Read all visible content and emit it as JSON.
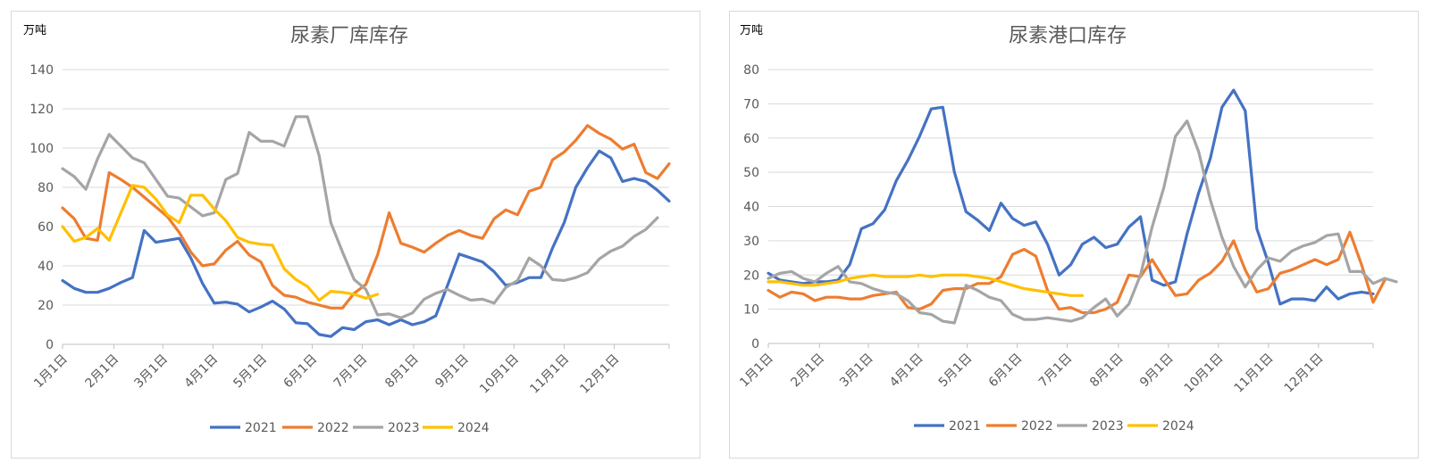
{
  "chart_data": [
    {
      "type": "line",
      "title": "尿素厂库库存",
      "unit_label": "万吨",
      "ylim": [
        0,
        140
      ],
      "yticks": [
        0,
        20,
        40,
        60,
        80,
        100,
        120,
        140
      ],
      "xlim": [
        1,
        53
      ],
      "xtick_positions": [
        1,
        5.4,
        9.6,
        13.9,
        18.1,
        22.4,
        26.7,
        31.1,
        35.4,
        39.7,
        44,
        48.3
      ],
      "xtick_labels": [
        "1月1日",
        "2月1日",
        "3月1日",
        "4月1日",
        "5月1日",
        "6月1日",
        "7月1日",
        "8月1日",
        "9月1日",
        "10月1日",
        "11月1日",
        "12月1日"
      ],
      "grid": true,
      "legend_position": "bottom",
      "series": [
        {
          "name": "2021",
          "color": "#4472c4",
          "values": [
            32.5,
            28.5,
            26.5,
            26.5,
            28.5,
            31.5,
            34,
            58,
            52,
            53,
            54,
            44,
            31,
            21,
            21.5,
            20.5,
            16.5,
            19,
            22,
            18,
            11,
            10.5,
            5,
            4,
            8.5,
            7.5,
            11.5,
            12.5,
            10,
            12.5,
            10,
            11.5,
            14.5,
            30,
            46,
            44,
            42,
            37,
            30,
            31.5,
            34,
            34,
            49,
            62,
            80,
            90,
            98.5,
            95,
            83,
            84.5,
            83,
            78.5,
            73
          ]
        },
        {
          "name": "2022",
          "color": "#ed7d31",
          "values": [
            69.5,
            64,
            54,
            53,
            87.5,
            84,
            80,
            75,
            70,
            65,
            57,
            47,
            40,
            41,
            48,
            52.5,
            45.5,
            42,
            30,
            25,
            24,
            21.5,
            20,
            18.5,
            18.5,
            26,
            30.5,
            45.5,
            67,
            51.5,
            49.5,
            47,
            51.5,
            55.5,
            58,
            55.5,
            54,
            64,
            68.5,
            66,
            78,
            80,
            94,
            98,
            104,
            111.5,
            107.5,
            104.5,
            99.5,
            102,
            87.5,
            84.5,
            92
          ]
        },
        {
          "name": "2023",
          "color": "#a5a5a5",
          "values": [
            89.5,
            85.5,
            79,
            94.5,
            107,
            101,
            95,
            92.5,
            84,
            75.5,
            74.5,
            70,
            65.5,
            67,
            84,
            87,
            108,
            103.5,
            103.5,
            101,
            116,
            116,
            96,
            62,
            47,
            33,
            28,
            15,
            15.5,
            13.5,
            16,
            23,
            26,
            28,
            25,
            22.5,
            23,
            21,
            29,
            32.5,
            44,
            40,
            33,
            32.5,
            34,
            36.5,
            43.5,
            47.5,
            50,
            55,
            58.5,
            64.5
          ]
        },
        {
          "name": "2024",
          "color": "#ffc000",
          "values": [
            60,
            52.5,
            54.5,
            59,
            53,
            67,
            81,
            80,
            74,
            66,
            62,
            76,
            76,
            69,
            63,
            54.5,
            52,
            51,
            50.5,
            38.5,
            33,
            29.5,
            22.5,
            27,
            26.5,
            25.5,
            23.5,
            25.5
          ]
        }
      ]
    },
    {
      "type": "line",
      "title": "尿素港口库存",
      "unit_label": "万吨",
      "ylim": [
        0,
        80
      ],
      "yticks": [
        0,
        10,
        20,
        30,
        40,
        50,
        60,
        70,
        80
      ],
      "xlim": [
        1,
        53
      ],
      "xtick_positions": [
        1,
        5.4,
        9.6,
        13.9,
        18.1,
        22.4,
        26.7,
        31.1,
        35.4,
        39.7,
        44,
        48.3
      ],
      "xtick_labels": [
        "1月1日",
        "2月1日",
        "3月1日",
        "4月1日",
        "5月1日",
        "6月1日",
        "7月1日",
        "8月1日",
        "9月1日",
        "10月1日",
        "11月1日",
        "12月1日"
      ],
      "grid": true,
      "legend_position": "bottom",
      "series": [
        {
          "name": "2021",
          "color": "#4472c4",
          "values": [
            20.5,
            18.5,
            18,
            17.5,
            18,
            18,
            18.5,
            23,
            33.5,
            35,
            39,
            47.5,
            53.5,
            60.5,
            68.5,
            69,
            50,
            38.5,
            36,
            33,
            41,
            36.5,
            34.5,
            35.5,
            29,
            20,
            23,
            29,
            31,
            28,
            29,
            34,
            37,
            18.5,
            17,
            18,
            32,
            44,
            54,
            69,
            74,
            68,
            33.5,
            23.5,
            11.5,
            13,
            13,
            12.5,
            16.5,
            13,
            14.5,
            15,
            14.5
          ]
        },
        {
          "name": "2022",
          "color": "#ed7d31",
          "values": [
            15.5,
            13.5,
            15,
            14.5,
            12.5,
            13.5,
            13.5,
            13,
            13,
            14,
            14.5,
            15,
            10.5,
            10,
            11.5,
            15.5,
            16,
            16,
            17.5,
            17.5,
            19.5,
            26,
            27.5,
            25.5,
            15.5,
            10,
            10.5,
            9,
            9,
            10,
            12,
            20,
            19.5,
            24.5,
            19,
            14,
            14.5,
            18.5,
            20.5,
            24,
            30,
            21.5,
            15,
            16,
            20.5,
            21.5,
            23,
            24.5,
            23,
            24.5,
            32.5,
            23,
            12,
            18.5
          ]
        },
        {
          "name": "2023",
          "color": "#a5a5a5",
          "values": [
            19,
            20.5,
            21,
            19,
            18,
            20.5,
            22.5,
            18,
            17.5,
            16,
            15,
            14.5,
            12.5,
            9,
            8.5,
            6.5,
            6,
            17,
            15.5,
            13.5,
            12.5,
            8.5,
            7,
            7,
            7.5,
            7,
            6.5,
            7.5,
            10.5,
            13,
            8,
            11.5,
            20,
            34,
            45.5,
            60.5,
            65,
            56,
            42,
            31,
            22.5,
            16.5,
            21.5,
            25,
            24,
            27,
            28.5,
            29.5,
            31.5,
            32,
            21,
            21,
            17.5,
            19,
            18
          ]
        },
        {
          "name": "2024",
          "color": "#ffc000",
          "values": [
            18,
            18,
            17.5,
            17,
            17,
            17.5,
            18,
            19,
            19.5,
            20,
            19.5,
            19.5,
            19.5,
            20,
            19.5,
            20,
            20,
            20,
            19.5,
            19,
            18,
            17,
            16,
            15.5,
            15,
            14.5,
            14,
            14
          ]
        }
      ]
    }
  ]
}
